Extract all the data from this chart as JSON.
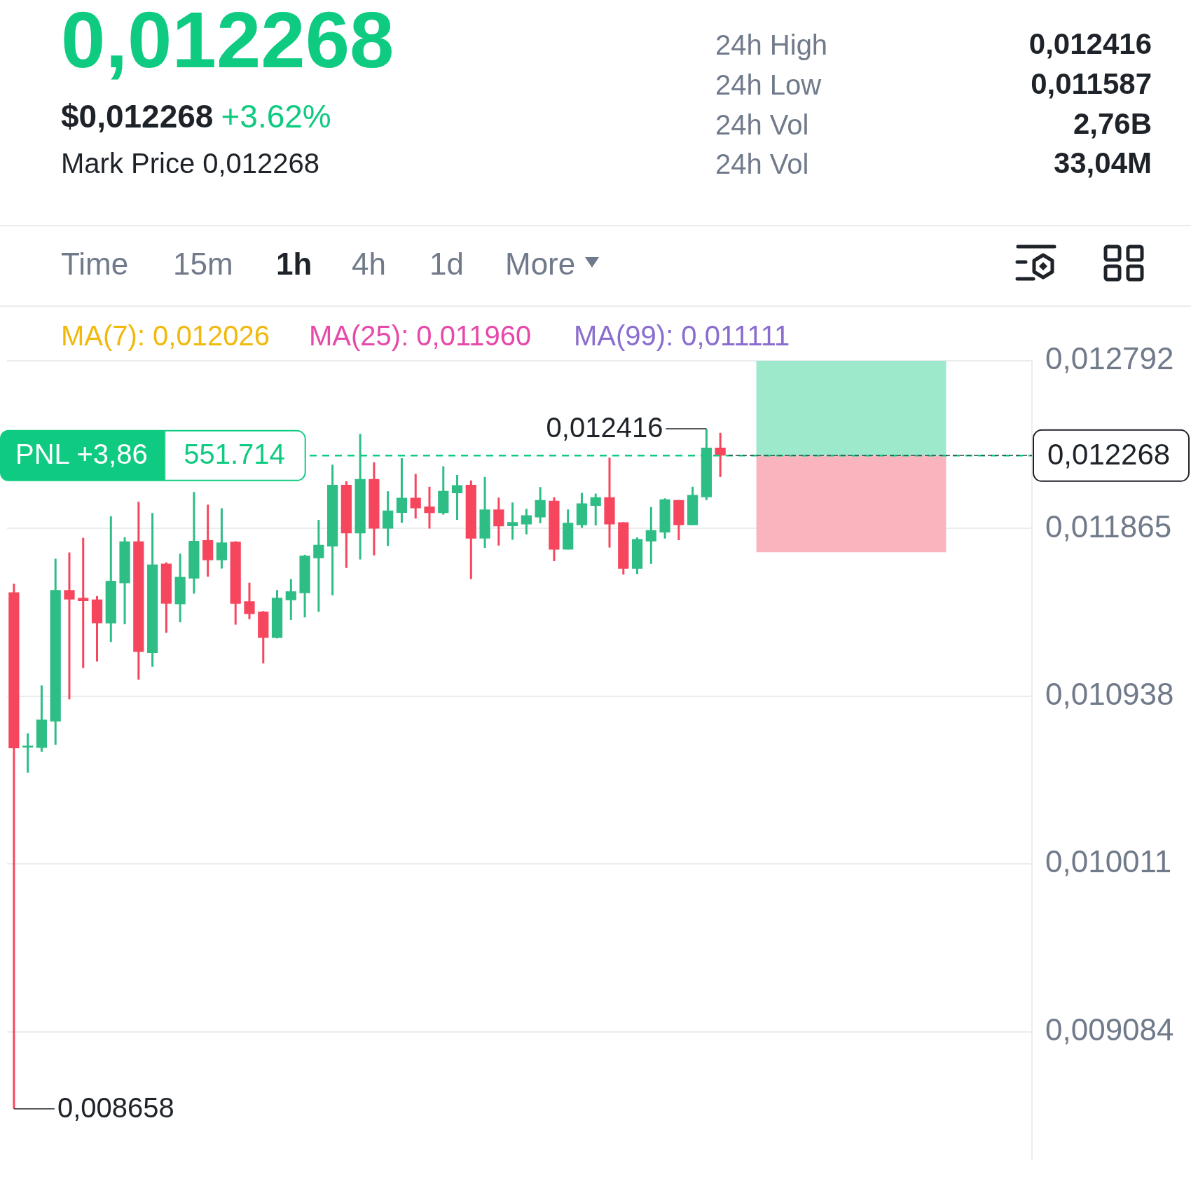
{
  "chart_data": {
    "type": "candlestick",
    "title": "0,012268",
    "subtitle": "$0,012268",
    "annotations": [
      "+3.62%",
      "Mark Price 0,012268",
      "24h High",
      "0,012416",
      "24h Low",
      "0,011587",
      "24h Vol",
      "2,76B",
      "24h Vol",
      "33,04M",
      "Time",
      "15m",
      "1h",
      "4h",
      "1d",
      "More",
      "MA(7): 0,012026",
      "MA(25): 0,011960",
      "MA(99): 0,011111",
      "551.714",
      "0,012416",
      "0,008658"
    ],
    "categories": [
      null,
      null,
      null,
      null,
      null,
      null,
      null,
      null,
      null,
      null,
      null,
      null,
      null,
      null,
      null,
      null,
      null,
      null,
      null,
      null,
      null,
      null,
      null,
      null,
      null,
      null,
      null,
      null,
      null,
      null,
      null,
      null,
      null,
      null,
      null,
      null,
      null,
      null,
      null,
      null,
      null,
      null,
      null,
      null,
      null,
      null,
      null,
      null,
      null,
      null,
      null,
      null,
      null,
      null,
      null,
      null,
      null,
      null,
      null,
      null,
      null,
      null,
      null,
      null,
      null,
      null,
      null,
      null,
      null,
      null,
      null,
      null,
      null,
      null
    ],
    "ohlc": [
      [
        0.011512,
        0.01156,
        0.008658,
        0.010651
      ],
      [
        0.010655,
        0.010734,
        0.010516,
        0.010665
      ],
      [
        0.010653,
        0.010998,
        0.010632,
        0.010809
      ],
      [
        0.010799,
        0.011698,
        0.01067,
        0.011525
      ],
      [
        0.011525,
        0.011733,
        0.010921,
        0.011473
      ],
      [
        0.011482,
        0.011814,
        0.011094,
        0.011464
      ],
      [
        0.011473,
        0.011492,
        0.01113,
        0.011342
      ],
      [
        0.011341,
        0.011933,
        0.011238,
        0.011576
      ],
      [
        0.011563,
        0.011817,
        0.011336,
        0.011794
      ],
      [
        0.011794,
        0.012013,
        0.01103,
        0.011183
      ],
      [
        0.011178,
        0.011951,
        0.011101,
        0.011666
      ],
      [
        0.011671,
        0.011678,
        0.011289,
        0.01145
      ],
      [
        0.011447,
        0.011726,
        0.011347,
        0.011598
      ],
      [
        0.011589,
        0.012067,
        0.011505,
        0.011797
      ],
      [
        0.011801,
        0.011997,
        0.011599,
        0.01169
      ],
      [
        0.01169,
        0.011977,
        0.011644,
        0.011788
      ],
      [
        0.011792,
        0.011795,
        0.011334,
        0.01145
      ],
      [
        0.011463,
        0.011566,
        0.011364,
        0.011393
      ],
      [
        0.011406,
        0.011409,
        0.01112,
        0.011261
      ],
      [
        0.011261,
        0.011525,
        0.011258,
        0.011482
      ],
      [
        0.011469,
        0.011586,
        0.01136,
        0.011518
      ],
      [
        0.011508,
        0.01172,
        0.011374,
        0.011715
      ],
      [
        0.011701,
        0.011913,
        0.011405,
        0.011775
      ],
      [
        0.011766,
        0.012218,
        0.011496,
        0.012107
      ],
      [
        0.012107,
        0.012126,
        0.011647,
        0.011839
      ],
      [
        0.011839,
        0.012388,
        0.011694,
        0.012139
      ],
      [
        0.012139,
        0.012231,
        0.011717,
        0.011865
      ],
      [
        0.011865,
        0.012071,
        0.011769,
        0.011964
      ],
      [
        0.011952,
        0.012254,
        0.011897,
        0.012035
      ],
      [
        0.012035,
        0.012167,
        0.01192,
        0.011977
      ],
      [
        0.011987,
        0.012096,
        0.011865,
        0.011951
      ],
      [
        0.011951,
        0.012209,
        0.011942,
        0.012073
      ],
      [
        0.01206,
        0.012161,
        0.011913,
        0.012105
      ],
      [
        0.012107,
        0.012131,
        0.011586,
        0.01181
      ],
      [
        0.01181,
        0.01215,
        0.011758,
        0.01197
      ],
      [
        0.01197,
        0.012036,
        0.011771,
        0.011877
      ],
      [
        0.011878,
        0.012009,
        0.011803,
        0.011901
      ],
      [
        0.011888,
        0.011974,
        0.011833,
        0.011938
      ],
      [
        0.011927,
        0.012094,
        0.011895,
        0.012023
      ],
      [
        0.012019,
        0.012038,
        0.011685,
        0.011749
      ],
      [
        0.011749,
        0.01197,
        0.011749,
        0.011897
      ],
      [
        0.011884,
        0.012062,
        0.011869,
        0.012004
      ],
      [
        0.011991,
        0.012058,
        0.011882,
        0.012038
      ],
      [
        0.012038,
        0.012257,
        0.01176,
        0.011888
      ],
      [
        0.0119,
        0.0119,
        0.011611,
        0.011643
      ],
      [
        0.011643,
        0.011816,
        0.011614,
        0.011807
      ],
      [
        0.011794,
        0.011984,
        0.01167,
        0.011856
      ],
      [
        0.011843,
        0.012032,
        0.01181,
        0.012026
      ],
      [
        0.012023,
        0.012023,
        0.011801,
        0.011884
      ],
      [
        0.011884,
        0.012096,
        0.011884,
        0.012051
      ],
      [
        0.012038,
        0.012416,
        0.012022,
        0.012312
      ],
      [
        0.012312,
        0.012394,
        0.01215,
        0.012268
      ],
      null,
      null,
      null,
      null,
      null,
      null,
      null,
      null,
      null,
      null,
      null,
      null,
      null,
      null,
      null,
      null,
      null,
      null,
      null,
      null,
      null,
      null
    ],
    "colors": [
      "#f6465d",
      "#2ebd85",
      "#2ebd85",
      "#2ebd85",
      "#f6465d",
      "#f6465d",
      "#f6465d",
      "#2ebd85",
      "#2ebd85",
      "#f6465d",
      "#2ebd85",
      "#f6465d",
      "#2ebd85",
      "#2ebd85",
      "#f6465d",
      "#2ebd85",
      "#f6465d",
      "#f6465d",
      "#f6465d",
      "#2ebd85",
      "#2ebd85",
      "#2ebd85",
      "#2ebd85",
      "#2ebd85",
      "#f6465d",
      "#2ebd85",
      "#f6465d",
      "#2ebd85",
      "#2ebd85",
      "#f6465d",
      "#f6465d",
      "#2ebd85",
      "#2ebd85",
      "#f6465d",
      "#2ebd85",
      "#f6465d",
      "#2ebd85",
      "#2ebd85",
      "#2ebd85",
      "#f6465d",
      "#2ebd85",
      "#2ebd85",
      "#2ebd85",
      "#f6465d",
      "#f6465d",
      "#2ebd85",
      "#2ebd85",
      "#2ebd85",
      "#f6465d",
      "#2ebd85",
      "#2ebd85",
      "#f6465d",
      null,
      null,
      null,
      null,
      null,
      null,
      null,
      null,
      null,
      null,
      null,
      null,
      null,
      null,
      null,
      null,
      null,
      null,
      null,
      null,
      null,
      null
    ],
    "ylim": [
      0.00838,
      0.012792
    ],
    "yticks": [
      {
        "value": 0.009084,
        "label": "0,009084"
      },
      {
        "value": 0.010011,
        "label": "0,010011"
      },
      {
        "value": 0.010938,
        "label": "0,010938"
      },
      {
        "value": 0.011865,
        "label": "0,011865"
      },
      {
        "value": 0.012792,
        "label": "0,012792"
      }
    ],
    "ref_lines": [
      {
        "axis": "y",
        "value": 0.012268,
        "label": "PNL +3,86",
        "color": "#0ecb81",
        "line_style": "dashed"
      },
      {
        "axis": "y",
        "value": 0.012268,
        "label": "0,012268",
        "color": "#474d57",
        "line_style": "dashed"
      }
    ],
    "bands": [
      {
        "axis": "y",
        "from": 0.012268,
        "to": 0.012792,
        "color": "#9de9cc"
      },
      {
        "axis": "y",
        "from": 0.011734,
        "to": 0.012268,
        "color": "#f9b4bd"
      }
    ],
    "grid": "y",
    "tick_labels": "y"
  }
}
